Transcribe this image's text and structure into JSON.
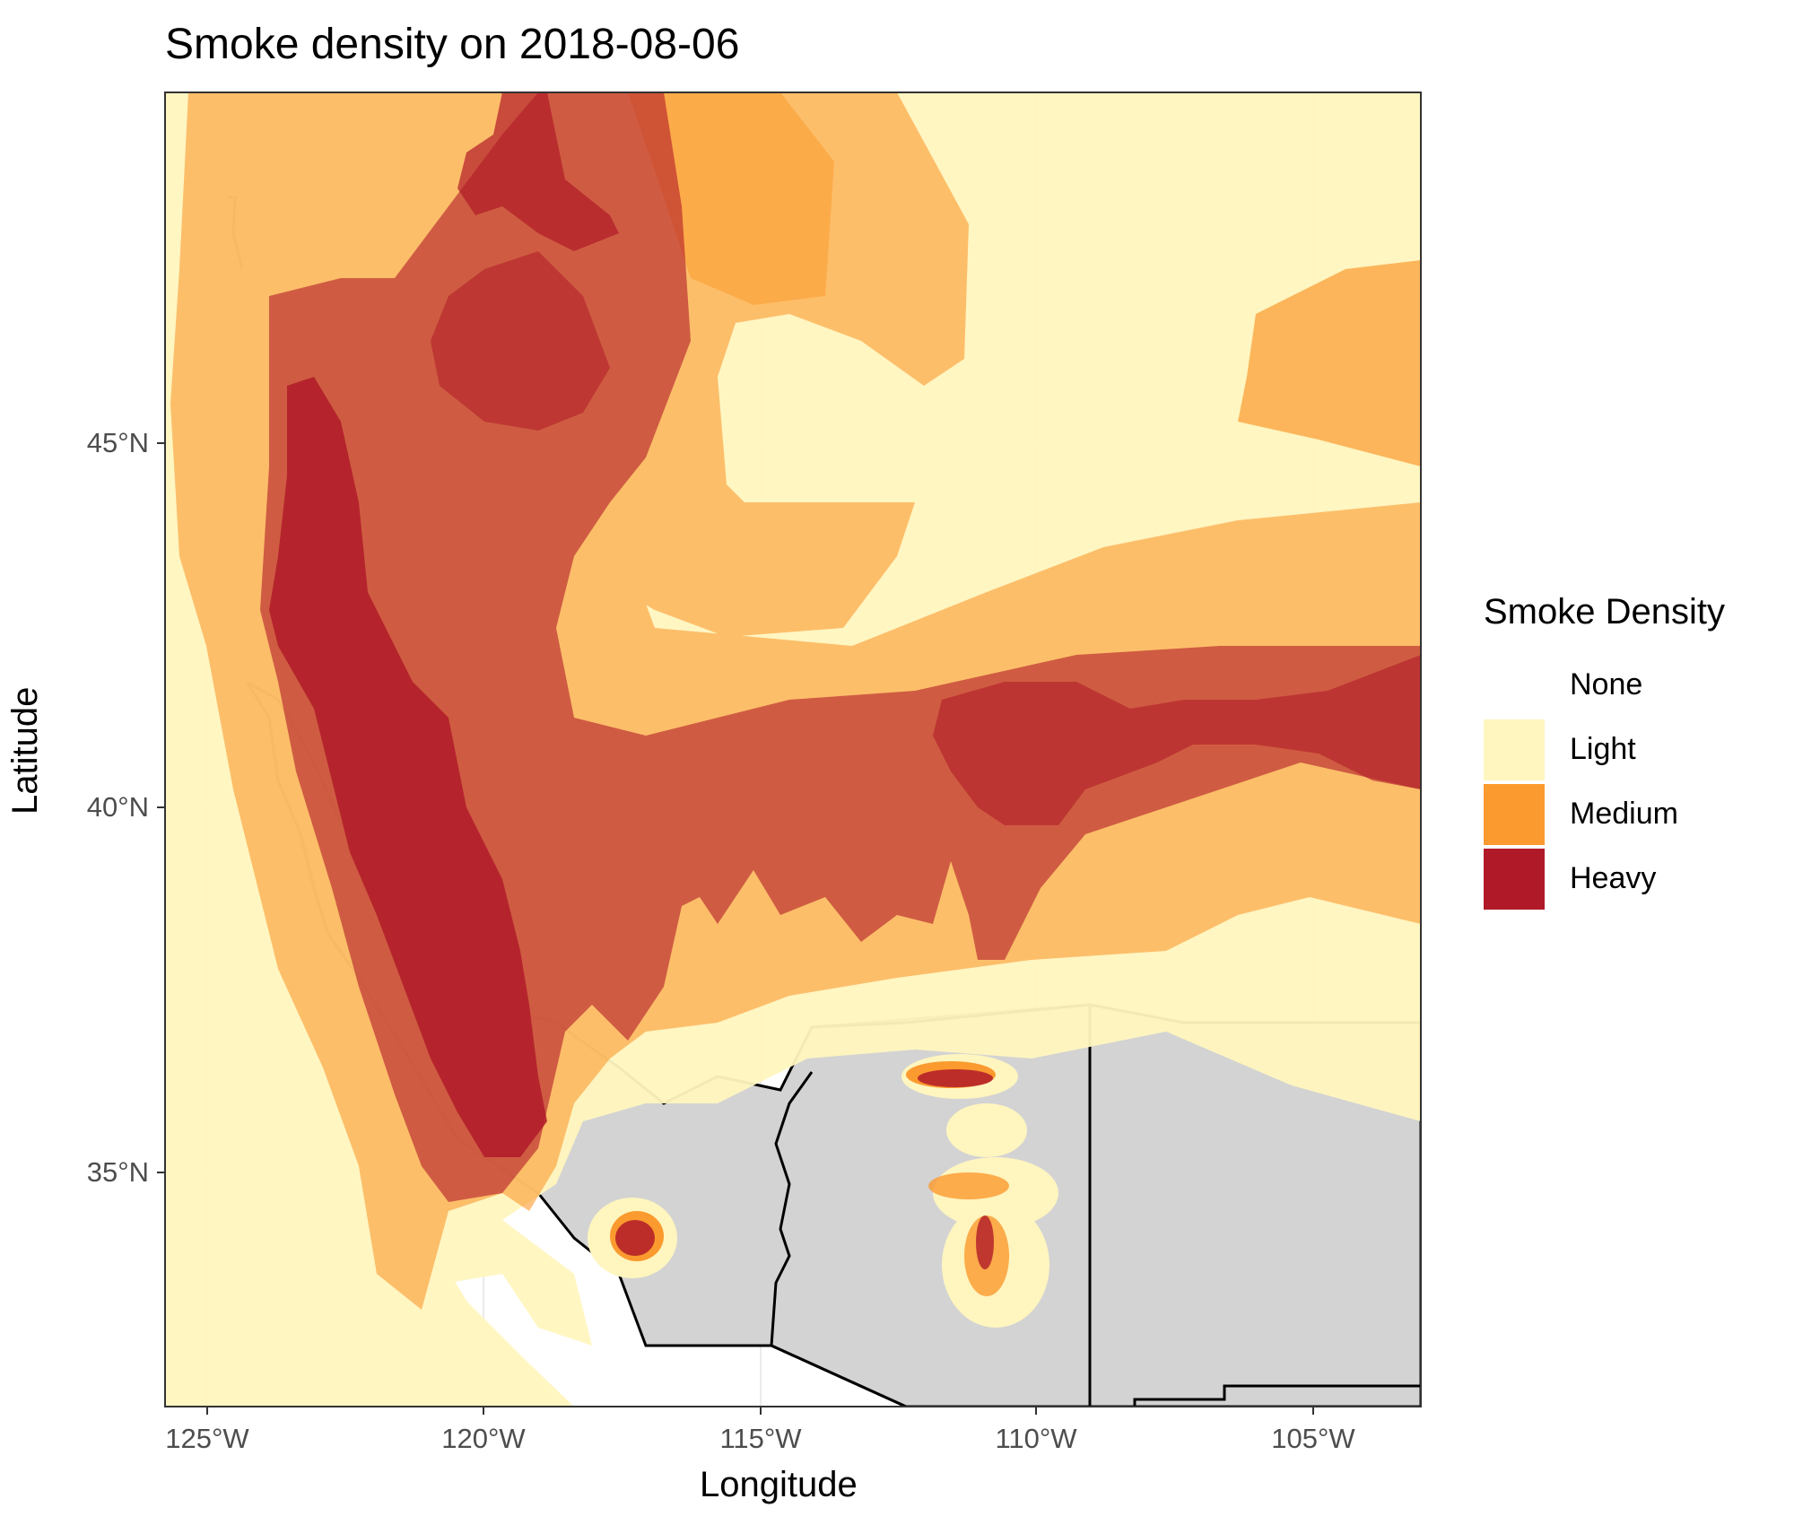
{
  "title": "Smoke density on 2018-08-06",
  "axes": {
    "xlabel": "Longitude",
    "ylabel": "Latitude",
    "xticks": [
      "125°W",
      "120°W",
      "115°W",
      "110°W",
      "105°W"
    ],
    "yticks": [
      "45°N",
      "40°N",
      "35°N"
    ]
  },
  "legend": {
    "title": "Smoke Density",
    "items": [
      {
        "label": "None",
        "color": "#ffffff"
      },
      {
        "label": "Light",
        "color": "#fff5bf"
      },
      {
        "label": "Medium",
        "color": "#fb9a2e"
      },
      {
        "label": "Heavy",
        "color": "#b01a28"
      }
    ]
  },
  "colors": {
    "land": "#d3d3d3",
    "light": "#fff5bf",
    "medium": "#fb9a2e",
    "heavy": "#b01a28",
    "panel_border": "#333333",
    "grid": "#ebebeb"
  }
}
